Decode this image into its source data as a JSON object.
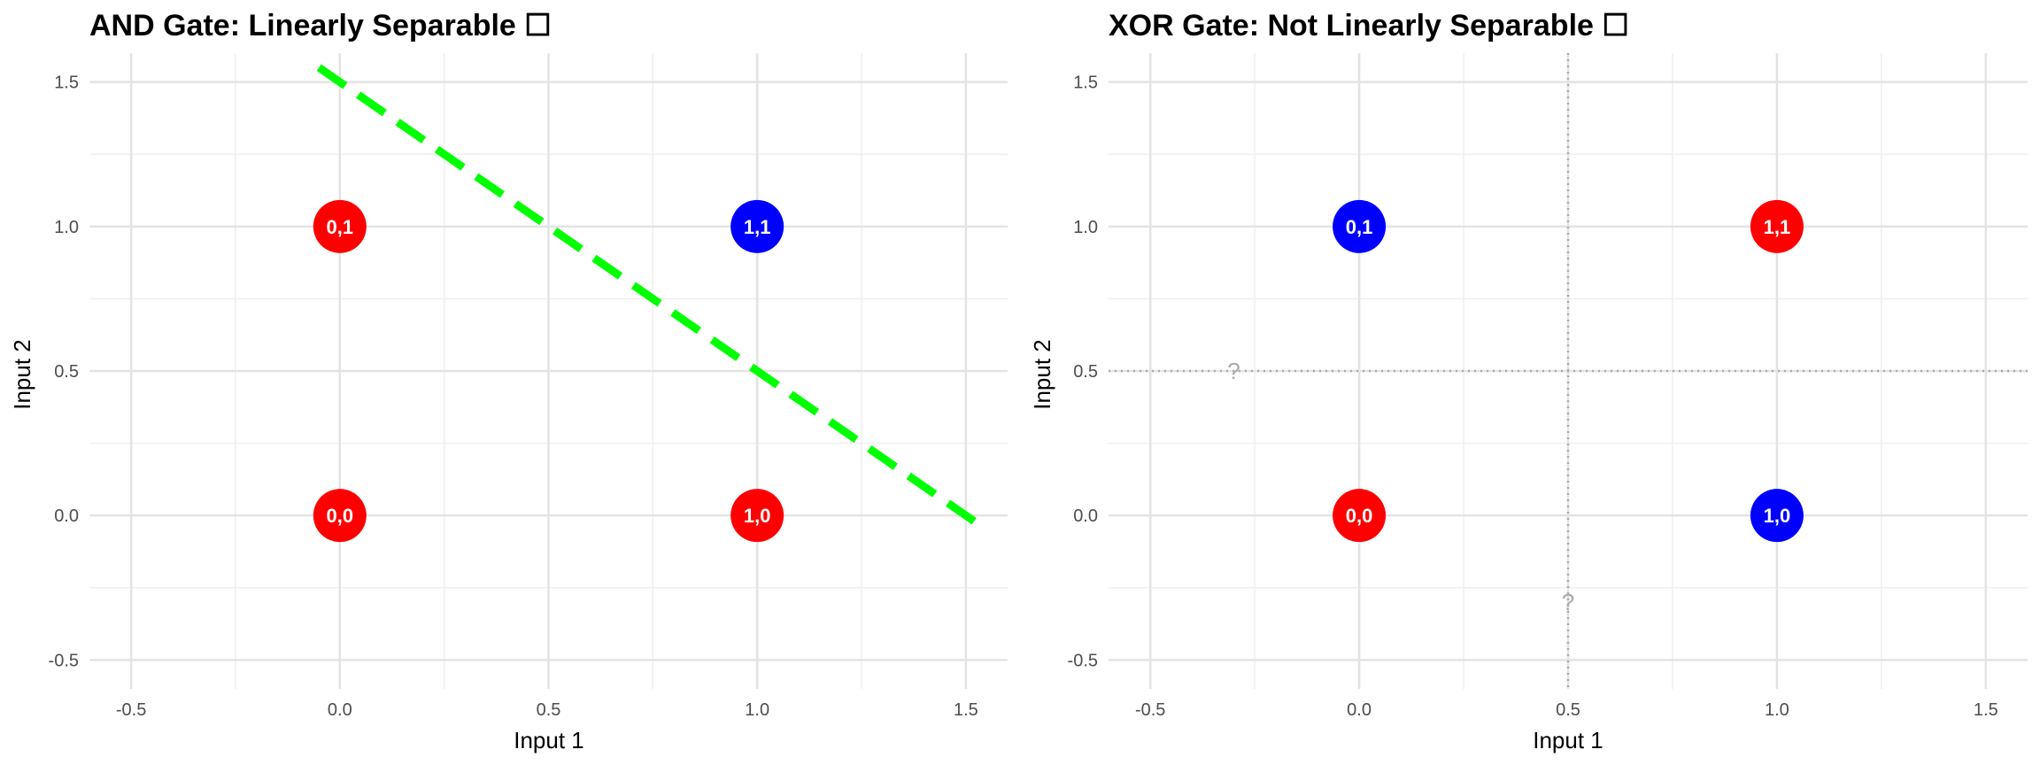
{
  "chart_data": [
    {
      "type": "scatter",
      "title": "AND Gate: Linearly Separable ☐",
      "xlabel": "Input 1",
      "ylabel": "Input 2",
      "xlim": [
        -0.6,
        1.6
      ],
      "ylim": [
        -0.6,
        1.6
      ],
      "x_ticks": [
        -0.5,
        0.0,
        0.5,
        1.0,
        1.5
      ],
      "y_ticks": [
        -0.5,
        0.0,
        0.5,
        1.0,
        1.5
      ],
      "x_tick_labels": [
        "-0.5",
        "0.0",
        "0.5",
        "1.0",
        "1.5"
      ],
      "y_tick_labels": [
        "-0.5",
        "0.0",
        "0.5",
        "1.0",
        "1.5"
      ],
      "grid": true,
      "colors": {
        "output_0": "#ff0000",
        "output_1": "#0000ff",
        "boundary": "#00ff00"
      },
      "points": [
        {
          "x": 0,
          "y": 0,
          "label": "0,0",
          "output": 0
        },
        {
          "x": 0,
          "y": 1,
          "label": "0,1",
          "output": 0
        },
        {
          "x": 1,
          "y": 0,
          "label": "1,0",
          "output": 0
        },
        {
          "x": 1,
          "y": 1,
          "label": "1,1",
          "output": 1
        }
      ],
      "boundary_line": {
        "x": [
          -0.05,
          1.55
        ],
        "y": [
          1.55,
          -0.05
        ],
        "style": "dashed"
      },
      "annotations": []
    },
    {
      "type": "scatter",
      "title": "XOR Gate: Not Linearly Separable ☐",
      "xlabel": "Input 1",
      "ylabel": "Input 2",
      "xlim": [
        -0.6,
        1.6
      ],
      "ylim": [
        -0.6,
        1.6
      ],
      "x_ticks": [
        -0.5,
        0.0,
        0.5,
        1.0,
        1.5
      ],
      "y_ticks": [
        -0.5,
        0.0,
        0.5,
        1.0,
        1.5
      ],
      "x_tick_labels": [
        "-0.5",
        "0.0",
        "0.5",
        "1.0",
        "1.5"
      ],
      "y_tick_labels": [
        "-0.5",
        "0.0",
        "0.5",
        "1.0",
        "1.5"
      ],
      "grid": true,
      "colors": {
        "output_0": "#ff0000",
        "output_1": "#0000ff",
        "reference": "#aaaaaa"
      },
      "points": [
        {
          "x": 0,
          "y": 0,
          "label": "0,0",
          "output": 0
        },
        {
          "x": 0,
          "y": 1,
          "label": "0,1",
          "output": 1
        },
        {
          "x": 1,
          "y": 0,
          "label": "1,0",
          "output": 1
        },
        {
          "x": 1,
          "y": 1,
          "label": "1,1",
          "output": 0
        }
      ],
      "reference_lines": [
        {
          "orientation": "vertical",
          "value": 0.5,
          "style": "dotted"
        },
        {
          "orientation": "horizontal",
          "value": 0.5,
          "style": "dotted"
        }
      ],
      "annotations": [
        {
          "x": -0.3,
          "y": 0.5,
          "text": "?"
        },
        {
          "x": 0.5,
          "y": -0.3,
          "text": "?"
        }
      ]
    }
  ]
}
